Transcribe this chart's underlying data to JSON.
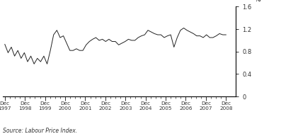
{
  "ylabel": "%",
  "source": "Source: Labour Price Index.",
  "ylim": [
    0,
    1.6
  ],
  "yticks": [
    0,
    0.4,
    0.8,
    1.2,
    1.6
  ],
  "x_labels": [
    "Dec\n1997",
    "Dec\n1998",
    "Dec\n1999",
    "Dec\n2000",
    "Dec\n2001",
    "Dec\n2002",
    "Dec\n2003",
    "Dec\n2004",
    "Dec\n2005",
    "Dec\n2006",
    "Dec\n2007",
    "Dec\n2008"
  ],
  "line_color": "#222222",
  "background_color": "#ffffff",
  "values": [
    0.93,
    0.78,
    0.88,
    0.72,
    0.82,
    0.68,
    0.78,
    0.62,
    0.72,
    0.58,
    0.68,
    0.62,
    0.72,
    0.58,
    0.82,
    1.1,
    1.18,
    1.05,
    1.08,
    0.95,
    0.82,
    0.82,
    0.85,
    0.82,
    0.82,
    0.92,
    0.98,
    1.02,
    1.05,
    1.0,
    1.02,
    0.98,
    1.02,
    0.98,
    0.98,
    0.92,
    0.95,
    0.98,
    1.02,
    1.0,
    1.0,
    1.05,
    1.08,
    1.1,
    1.18,
    1.15,
    1.12,
    1.1,
    1.1,
    1.05,
    1.08,
    1.1,
    0.88,
    1.05,
    1.18,
    1.22,
    1.18,
    1.15,
    1.12,
    1.08,
    1.08,
    1.05,
    1.1,
    1.05,
    1.05,
    1.08,
    1.12,
    1.1,
    1.1
  ]
}
